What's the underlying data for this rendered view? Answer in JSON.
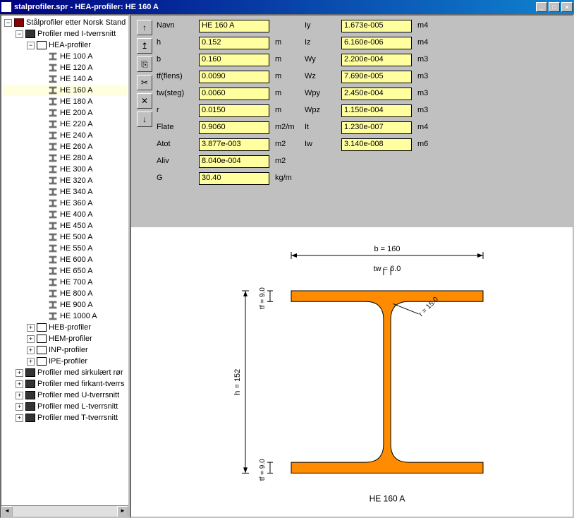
{
  "window": {
    "title": "stalprofiler.spr - HEA-profiler: HE 160 A"
  },
  "tree": {
    "root": "Stålprofiler etter Norsk Stand",
    "group": "Profiler med I-tverrsnitt",
    "hea_group": "HEA-profiler",
    "hea_items": [
      "HE 100 A",
      "HE 120 A",
      "HE 140 A",
      "HE 160 A",
      "HE 180 A",
      "HE 200 A",
      "HE 220 A",
      "HE 240 A",
      "HE 260 A",
      "HE 280 A",
      "HE 300 A",
      "HE 320 A",
      "HE 340 A",
      "HE 360 A",
      "HE 400 A",
      "HE 450 A",
      "HE 500 A",
      "HE 550 A",
      "HE 600 A",
      "HE 650 A",
      "HE 700 A",
      "HE 800 A",
      "HE 900 A",
      "HE 1000 A"
    ],
    "selected": "HE 160 A",
    "other_groups": [
      "HEB-profiler",
      "HEM-profiler",
      "INP-profiler",
      "IPE-profiler"
    ],
    "other_cats": [
      "Profiler med sirkulært rør",
      "Profiler med firkant-tverrs",
      "Profiler med U-tverrsnitt",
      "Profiler med L-tverrsnitt",
      "Profiler med T-tverrsnitt"
    ]
  },
  "props": {
    "left": [
      {
        "label": "Navn",
        "value": "HE 160 A",
        "unit": ""
      },
      {
        "label": "h",
        "value": "0.152",
        "unit": "m"
      },
      {
        "label": "b",
        "value": "0.160",
        "unit": "m"
      },
      {
        "label": "tf(flens)",
        "value": "0.0090",
        "unit": "m"
      },
      {
        "label": "tw(steg)",
        "value": "0.0060",
        "unit": "m"
      },
      {
        "label": "r",
        "value": "0.0150",
        "unit": "m"
      },
      {
        "label": "Flate",
        "value": "0.9060",
        "unit": "m2/m"
      },
      {
        "label": "Atot",
        "value": "3.877e-003",
        "unit": "m2"
      },
      {
        "label": "Aliv",
        "value": "8.040e-004",
        "unit": "m2"
      },
      {
        "label": "G",
        "value": "30.40",
        "unit": "kg/m"
      }
    ],
    "right": [
      {
        "label": "Iy",
        "value": "1.673e-005",
        "unit": "m4"
      },
      {
        "label": "Iz",
        "value": "6.160e-006",
        "unit": "m4"
      },
      {
        "label": "Wy",
        "value": "2.200e-004",
        "unit": "m3"
      },
      {
        "label": "Wz",
        "value": "7.690e-005",
        "unit": "m3"
      },
      {
        "label": "Wpy",
        "value": "2.450e-004",
        "unit": "m3"
      },
      {
        "label": "Wpz",
        "value": "1.150e-004",
        "unit": "m3"
      },
      {
        "label": "It",
        "value": "1.230e-007",
        "unit": "m4"
      },
      {
        "label": "Iw",
        "value": "3.140e-008",
        "unit": "m6"
      }
    ]
  },
  "diagram": {
    "title": "HE 160 A",
    "b_label": "b = 160",
    "tw_label": "tw = 6.0",
    "r_label": "r = 15.0",
    "h_label": "h = 152",
    "tf_label": "tf = 9.0",
    "beam_color": "#ff8c00",
    "beam_stroke": "#000000",
    "dim_color": "#000000",
    "background": "#ffffff",
    "geom": {
      "h": 152,
      "b": 160,
      "tf": 9,
      "tw": 6,
      "r": 15
    }
  }
}
